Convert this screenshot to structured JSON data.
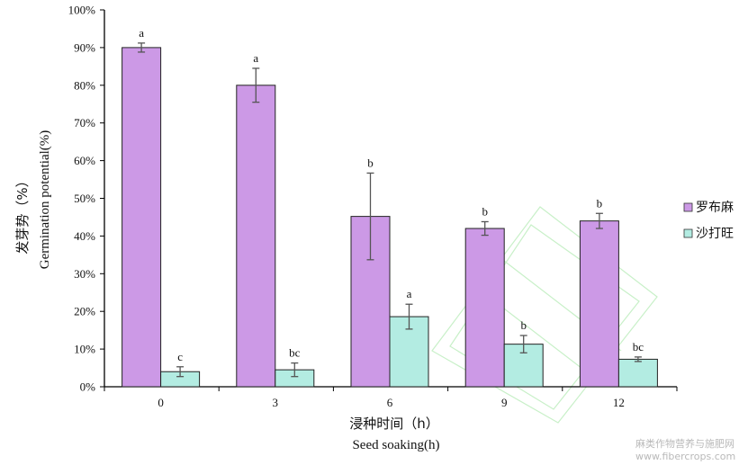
{
  "chart_data": {
    "type": "bar",
    "categories": [
      "0",
      "3",
      "6",
      "9",
      "12"
    ],
    "series": [
      {
        "name": "罗布麻",
        "color": "#cc99e6",
        "values": [
          90,
          80,
          45.2,
          42,
          44
        ],
        "errors": [
          1.2,
          4.5,
          11.5,
          1.8,
          2.0
        ],
        "labels": [
          "a",
          "a",
          "b",
          "b",
          "b"
        ]
      },
      {
        "name": "沙打旺",
        "color": "#b3ece2",
        "values": [
          4,
          4.5,
          18.6,
          11.3,
          7.3
        ],
        "errors": [
          1.3,
          1.8,
          3.3,
          2.3,
          0.6
        ],
        "labels": [
          "c",
          "bc",
          "a",
          "b",
          "bc"
        ]
      }
    ],
    "ylim": [
      0,
      100
    ],
    "yticks": [
      "0%",
      "10%",
      "20%",
      "30%",
      "40%",
      "50%",
      "60%",
      "70%",
      "80%",
      "90%",
      "100%"
    ],
    "ylabel_cn": "发芽势（%）",
    "ylabel_en": "Germination potential(%)",
    "xlabel_cn": "浸种时间（h）",
    "xlabel_en": "Seed soaking(h)",
    "legend_position": "right",
    "grid": false
  },
  "watermark": {
    "text_cn": "麻类作物营养与施肥网",
    "text_url": "www.fibercrops.com"
  }
}
